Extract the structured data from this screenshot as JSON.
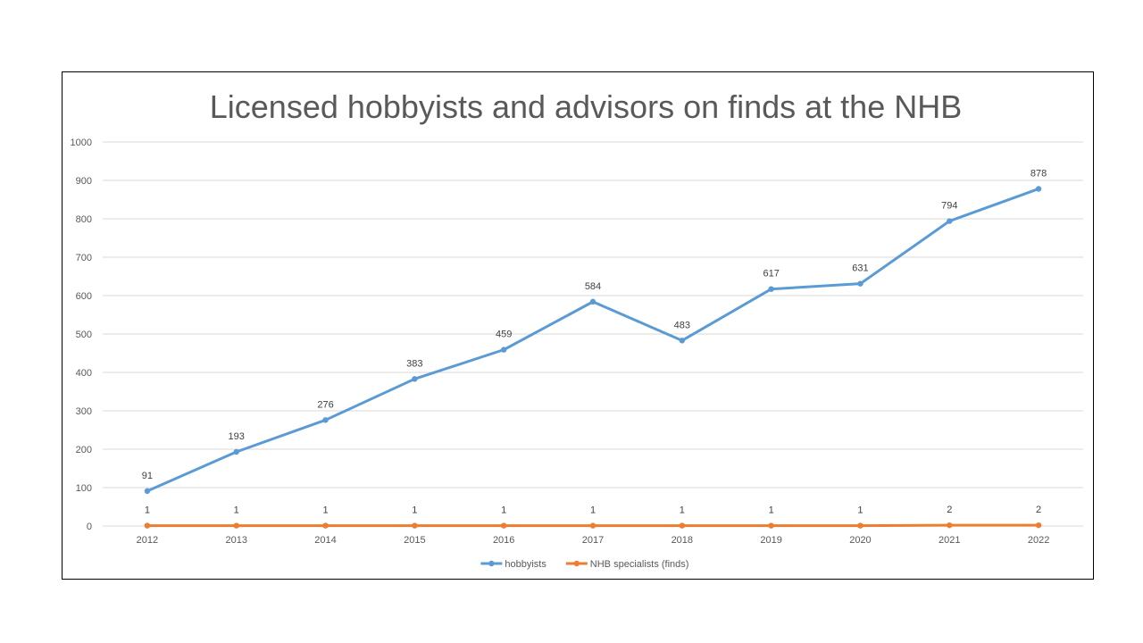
{
  "chart_data": {
    "type": "line",
    "title": "Licensed hobbyists and advisors on finds at the NHB",
    "xlabel": "",
    "ylabel": "",
    "categories": [
      "2012",
      "2013",
      "2014",
      "2015",
      "2016",
      "2017",
      "2018",
      "2019",
      "2020",
      "2021",
      "2022"
    ],
    "ylim": [
      0,
      1000
    ],
    "yticks": [
      0,
      100,
      200,
      300,
      400,
      500,
      600,
      700,
      800,
      900,
      1000
    ],
    "grid": true,
    "legend_position": "bottom",
    "series": [
      {
        "name": "hobbyists",
        "color": "#5b9bd5",
        "values": [
          91,
          193,
          276,
          383,
          459,
          584,
          483,
          617,
          631,
          794,
          878
        ]
      },
      {
        "name": "NHB specialists (finds)",
        "color": "#ed7d31",
        "values": [
          1,
          1,
          1,
          1,
          1,
          1,
          1,
          1,
          1,
          2,
          2
        ]
      }
    ]
  }
}
